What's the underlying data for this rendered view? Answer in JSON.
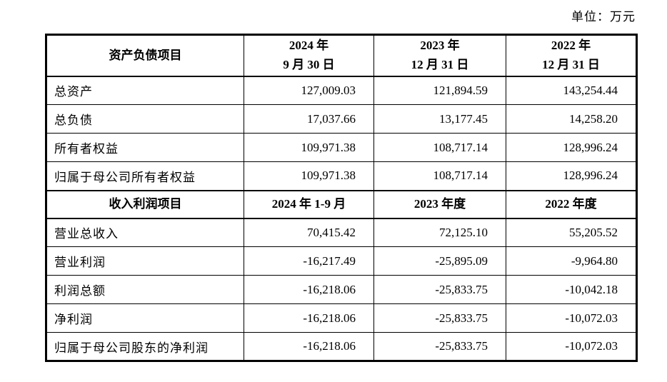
{
  "page": {
    "unit_label": "单位：万元"
  },
  "sections": [
    {
      "header": {
        "label": "资产负债项目",
        "columns": [
          {
            "line1": "2024 年",
            "line2": "9 月 30 日"
          },
          {
            "line1": "2023 年",
            "line2": "12 月 31 日"
          },
          {
            "line1": "2022 年",
            "line2": "12 月 31 日"
          }
        ]
      },
      "rows": [
        {
          "label": "总资产",
          "values": [
            "127,009.03",
            "121,894.59",
            "143,254.44"
          ]
        },
        {
          "label": "总负债",
          "values": [
            "17,037.66",
            "13,177.45",
            "14,258.20"
          ]
        },
        {
          "label": "所有者权益",
          "values": [
            "109,971.38",
            "108,717.14",
            "128,996.24"
          ]
        },
        {
          "label": "归属于母公司所有者权益",
          "values": [
            "109,971.38",
            "108,717.14",
            "128,996.24"
          ]
        }
      ]
    },
    {
      "header": {
        "label": "收入利润项目",
        "columns": [
          "2024 年 1-9 月",
          "2023 年度",
          "2022 年度"
        ]
      },
      "rows": [
        {
          "label": "营业总收入",
          "values": [
            "70,415.42",
            "72,125.10",
            "55,205.52"
          ]
        },
        {
          "label": "营业利润",
          "values": [
            "-16,217.49",
            "-25,895.09",
            "-9,964.80"
          ]
        },
        {
          "label": "利润总额",
          "values": [
            "-16,218.06",
            "-25,833.75",
            "-10,042.18"
          ]
        },
        {
          "label": "净利润",
          "values": [
            "-16,218.06",
            "-25,833.75",
            "-10,072.03"
          ]
        },
        {
          "label": "归属于母公司股东的净利润",
          "values": [
            "-16,218.06",
            "-25,833.75",
            "-10,072.03"
          ]
        }
      ]
    }
  ]
}
